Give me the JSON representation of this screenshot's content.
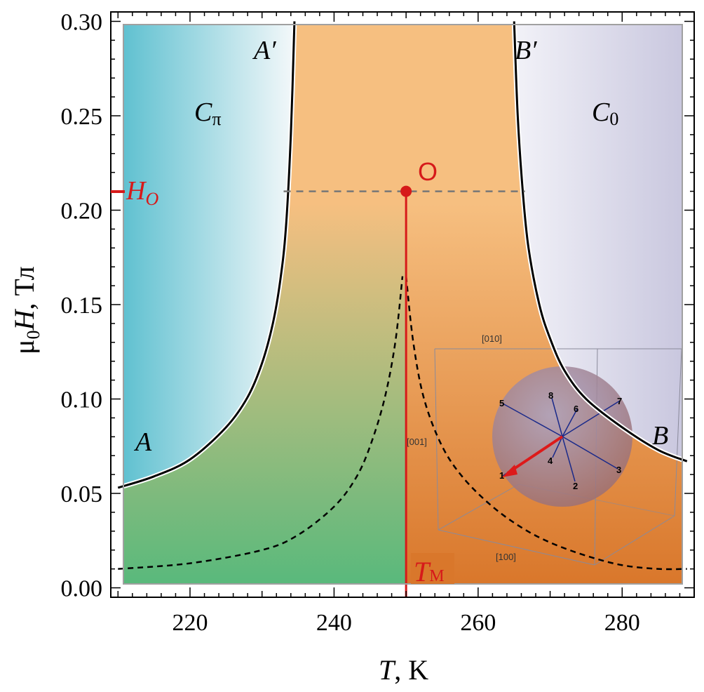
{
  "chart_data": {
    "type": "line",
    "xlabel": {
      "italic": "T",
      "rest": ", K"
    },
    "ylabel": {
      "pre": "μ",
      "sub": "0",
      "italic": "H",
      "rest": ", Тл"
    },
    "xlim": [
      209,
      290
    ],
    "ylim": [
      -0.005,
      0.305
    ],
    "xticks_major": [
      220,
      240,
      260,
      280
    ],
    "yticks_major": [
      0.0,
      0.05,
      0.1,
      0.15,
      0.2,
      0.25,
      0.3
    ],
    "ytick_labels": [
      "0.00",
      "0.05",
      "0.10",
      "0.15",
      "0.20",
      "0.25",
      "0.30"
    ],
    "series": [
      {
        "key": "boundary_A",
        "style": "solid",
        "color": "#000000",
        "x": [
          210,
          215,
          220,
          225,
          228,
          230,
          231.5,
          232.5,
          233.3,
          234,
          234.5
        ],
        "y": [
          0.053,
          0.059,
          0.068,
          0.085,
          0.101,
          0.119,
          0.14,
          0.162,
          0.19,
          0.24,
          0.3
        ]
      },
      {
        "key": "boundary_B",
        "style": "solid",
        "color": "#000000",
        "x": [
          265,
          265.5,
          266.2,
          267,
          268.5,
          270,
          272,
          275,
          280,
          285,
          289
        ],
        "y": [
          0.3,
          0.25,
          0.21,
          0.18,
          0.15,
          0.132,
          0.115,
          0.1,
          0.085,
          0.073,
          0.067
        ]
      },
      {
        "key": "dashed_left",
        "style": "dashed",
        "color": "#000000",
        "x": [
          210,
          220,
          230,
          235,
          240,
          243,
          245,
          247,
          248.5,
          249.5
        ],
        "y": [
          0.01,
          0.013,
          0.02,
          0.028,
          0.043,
          0.058,
          0.075,
          0.1,
          0.13,
          0.165
        ]
      },
      {
        "key": "dashed_right",
        "style": "dashed",
        "color": "#000000",
        "x": [
          250,
          251,
          252.5,
          255,
          258,
          262,
          266,
          270,
          275,
          280,
          285,
          289
        ],
        "y": [
          0.165,
          0.13,
          0.1,
          0.075,
          0.058,
          0.043,
          0.032,
          0.024,
          0.017,
          0.012,
          0.01,
          0.01
        ]
      }
    ],
    "guide_lines": {
      "horizontal_dashed": {
        "y": 0.21,
        "x_from": 233,
        "x_to": 266.5,
        "color": "#777777"
      },
      "vertical_red": {
        "x": 250,
        "y_from": -0.005,
        "y_to": 0.21,
        "color": "#d61a1a"
      }
    },
    "point_O": {
      "x": 250,
      "y": 0.21,
      "label": "O",
      "color": "#d61a1a"
    },
    "axis_markers": {
      "H_O": {
        "y": 0.21,
        "label_italic": "H",
        "label_sub": "O",
        "color": "#d61a1a"
      },
      "T_M": {
        "x": 250,
        "label_italic": "T",
        "label_sub": "М",
        "color": "#d61a1a"
      }
    },
    "region_labels": [
      {
        "key": "A_prime",
        "x": 230,
        "y": 0.285,
        "text": "A′"
      },
      {
        "key": "B_prime",
        "x": 268.5,
        "y": 0.285,
        "text": "B′"
      },
      {
        "key": "C_pi",
        "main": "C",
        "sub": "π",
        "x": 222,
        "y": 0.245
      },
      {
        "key": "C_0",
        "main": "C",
        "sub": "0",
        "x": 282,
        "y": 0.245
      },
      {
        "key": "A",
        "x": 212,
        "y": 0.072,
        "text": "A"
      },
      {
        "key": "B",
        "x": 286,
        "y": 0.077,
        "text": "B"
      }
    ],
    "region_colors": {
      "C_pi": [
        "#5bbfcf",
        "#f4f8fa"
      ],
      "C_0": [
        "#f2f2f8",
        "#c8c6de"
      ],
      "middle_left": [
        "#f6bf80",
        "#59b97c"
      ],
      "middle_right": [
        "#f6bf80",
        "#d9772b"
      ]
    },
    "grid": false,
    "legend": "none"
  },
  "inset": {
    "axis_labels": {
      "a010": "[010]",
      "a001": "[001]",
      "a100": "[100]"
    },
    "direction_labels": [
      "1",
      "2",
      "3",
      "4",
      "5",
      "6",
      "7",
      "8"
    ],
    "ray_color": "#1a2a8a",
    "highlight_color": "#dd1a1a"
  }
}
